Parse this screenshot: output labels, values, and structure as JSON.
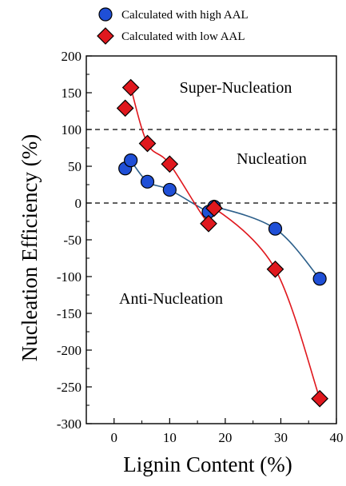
{
  "chart_data": {
    "type": "scatter",
    "xlabel": "Lignin Content (%)",
    "ylabel": "Nucleation Efficiency (%)",
    "xlim": [
      -5,
      40
    ],
    "ylim": [
      -300,
      200
    ],
    "x_ticks": [
      0,
      10,
      20,
      30,
      40
    ],
    "y_ticks": [
      200,
      150,
      100,
      50,
      0,
      -50,
      -100,
      -150,
      -200,
      -250,
      -300
    ],
    "grid": false,
    "legend_position": "top",
    "reference_lines": [
      100,
      0
    ],
    "annotations": [
      "Super-Nucleation",
      "Nucleation",
      "Anti-Nucleation"
    ],
    "series": [
      {
        "name": "Calculated with high AAL",
        "marker": "circle",
        "color": "#1f4fd6",
        "curve_color": "#2c5f8a",
        "x": [
          2,
          3,
          6,
          10,
          17,
          18,
          29,
          37
        ],
        "y": [
          47,
          58,
          29,
          18,
          -12,
          -5,
          -35,
          -103
        ]
      },
      {
        "name": "Calculated with low  AAL",
        "marker": "diamond",
        "color": "#e0181e",
        "curve_color": "#e0181e",
        "x": [
          2,
          3,
          6,
          10,
          17,
          18,
          29,
          37
        ],
        "y": [
          129,
          157,
          81,
          53,
          -28,
          -7,
          -90,
          -266
        ]
      }
    ]
  }
}
